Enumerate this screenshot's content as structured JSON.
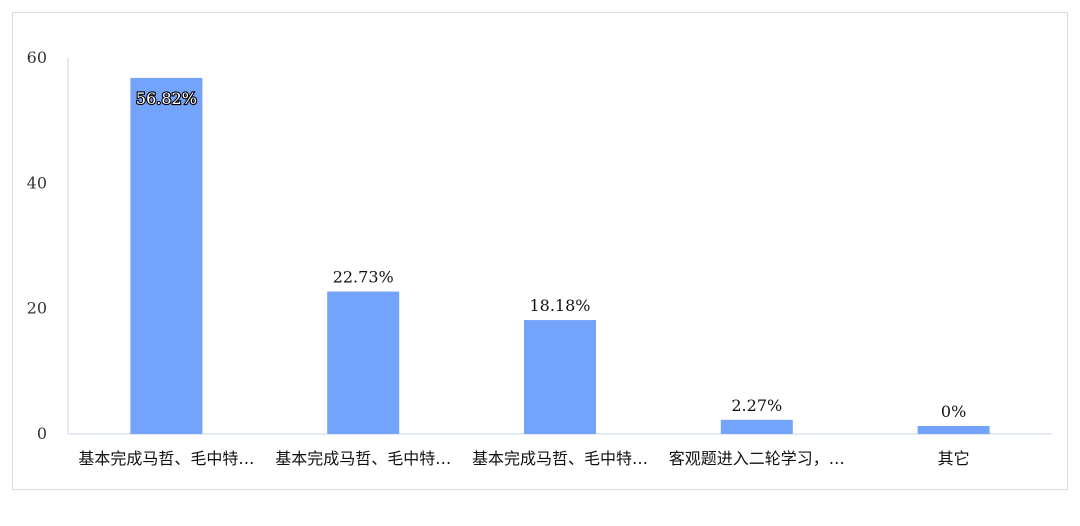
{
  "chart_data": {
    "type": "bar",
    "categories": [
      "基本完成马哲、毛中特…",
      "基本完成马哲、毛中特…",
      "基本完成马哲、毛中特…",
      "客观题进入二轮学习，…",
      "其它"
    ],
    "values": [
      56.82,
      22.73,
      18.18,
      2.27,
      0
    ],
    "data_labels": [
      "56.82%",
      "22.73%",
      "18.18%",
      "2.27%",
      "0%"
    ],
    "ylim": [
      0,
      60
    ],
    "yticks": [
      0,
      20,
      40,
      60
    ],
    "grid": false,
    "legend": "none",
    "colors": {
      "bar": "#74a3fb",
      "axis": "#c8d7e6",
      "frame": "#dcdcdc"
    }
  }
}
